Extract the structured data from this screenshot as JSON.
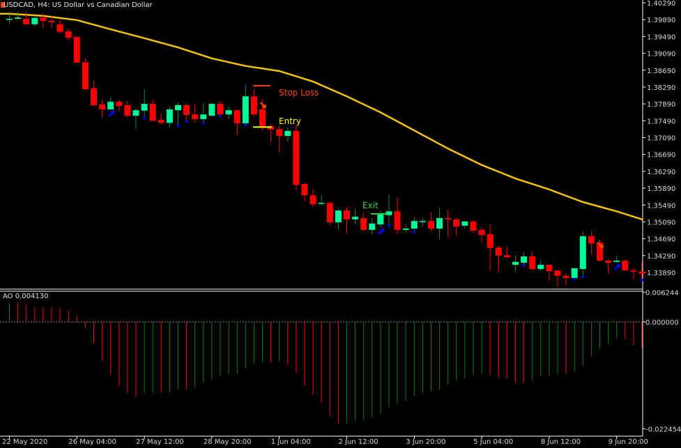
{
  "header": {
    "title": "USDCAD, H4:  US Dollar vs Canadian Dollar"
  },
  "colors": {
    "background": "#000000",
    "bull": "#00fa9a",
    "bear": "#ff0000",
    "ma": "#f5c400",
    "ao_up": "#008000",
    "ao_down": "#ff0000",
    "axis": "#ffffff",
    "stop_loss": "#ff4500",
    "entry": "#ffff00",
    "exit": "#32cd32",
    "buy_arrow": "#0000ff",
    "sell_arrow": "#ff4500"
  },
  "annotations": {
    "stop_loss": {
      "label": "Stop Loss",
      "price": 1.3832
    },
    "entry": {
      "label": "Entry",
      "price": 1.3734
    },
    "exit": {
      "label": "Exit",
      "price": 1.3528
    }
  },
  "chart_data": [
    {
      "type": "candlestick",
      "title": "USDCAD, H4:  US Dollar vs Canadian Dollar",
      "ylim": [
        1.3349,
        1.4036
      ],
      "y_ticks": [
        "1.40290",
        "1.39890",
        "1.39490",
        "1.39090",
        "1.38690",
        "1.38290",
        "1.37890",
        "1.37490",
        "1.37090",
        "1.36690",
        "1.36290",
        "1.35890",
        "1.35490",
        "1.35090",
        "1.34690",
        "1.34290",
        "1.33890"
      ],
      "x_ticks": [
        {
          "index": 0,
          "label": "22 May 2020"
        },
        {
          "index": 8,
          "label": "26 May 04:00"
        },
        {
          "index": 16,
          "label": "27 May 12:00"
        },
        {
          "index": 24,
          "label": "28 May 20:00"
        },
        {
          "index": 32,
          "label": "1 Jun 04:00"
        },
        {
          "index": 40,
          "label": "2 Jun 12:00"
        },
        {
          "index": 48,
          "label": "3 Jun 20:00"
        },
        {
          "index": 56,
          "label": "5 Jun 04:00"
        },
        {
          "index": 64,
          "label": "8 Jun 12:00"
        },
        {
          "index": 72,
          "label": "9 Jun 20:00"
        }
      ],
      "ohlc": [
        [
          1.3991,
          1.4003,
          1.3979,
          1.3991
        ],
        [
          1.3991,
          1.4009,
          1.3989,
          1.3994
        ],
        [
          1.3991,
          1.4008,
          1.3978,
          1.3978
        ],
        [
          1.3978,
          1.3998,
          1.3973,
          1.3993
        ],
        [
          1.3994,
          1.4003,
          1.3969,
          1.3986
        ],
        [
          1.3986,
          1.3998,
          1.3969,
          1.3983
        ],
        [
          1.3978,
          1.3989,
          1.3956,
          1.396
        ],
        [
          1.3961,
          1.3968,
          1.394,
          1.3946
        ],
        [
          1.3948,
          1.395,
          1.3887,
          1.3887
        ],
        [
          1.3888,
          1.3897,
          1.3821,
          1.3824
        ],
        [
          1.3826,
          1.3844,
          1.3783,
          1.3786
        ],
        [
          1.3788,
          1.3799,
          1.3756,
          1.3776
        ],
        [
          1.3776,
          1.3806,
          1.3776,
          1.3794
        ],
        [
          1.3794,
          1.3799,
          1.3771,
          1.3784
        ],
        [
          1.3786,
          1.3796,
          1.3756,
          1.3761
        ],
        [
          1.3761,
          1.3779,
          1.3728,
          1.3774
        ],
        [
          1.3773,
          1.3824,
          1.3759,
          1.3789
        ],
        [
          1.3789,
          1.3799,
          1.3749,
          1.3749
        ],
        [
          1.3751,
          1.3766,
          1.3741,
          1.3744
        ],
        [
          1.3744,
          1.3783,
          1.3734,
          1.3776
        ],
        [
          1.3774,
          1.3791,
          1.374,
          1.3786
        ],
        [
          1.3786,
          1.3791,
          1.3751,
          1.3763
        ],
        [
          1.3764,
          1.3788,
          1.3744,
          1.3753
        ],
        [
          1.3753,
          1.3791,
          1.3746,
          1.3764
        ],
        [
          1.3761,
          1.3791,
          1.3759,
          1.3789
        ],
        [
          1.3789,
          1.3796,
          1.3763,
          1.3764
        ],
        [
          1.3764,
          1.3783,
          1.3753,
          1.3774
        ],
        [
          1.3774,
          1.3776,
          1.3715,
          1.3743
        ],
        [
          1.3743,
          1.3834,
          1.3743,
          1.3807
        ],
        [
          1.3807,
          1.3822,
          1.3759,
          1.3764
        ],
        [
          1.3776,
          1.3799,
          1.3726,
          1.3734
        ],
        [
          1.3736,
          1.374,
          1.37,
          1.3728
        ],
        [
          1.3729,
          1.3736,
          1.3673,
          1.3713
        ],
        [
          1.3713,
          1.3733,
          1.37,
          1.3725
        ],
        [
          1.3725,
          1.3738,
          1.3584,
          1.3597
        ],
        [
          1.3599,
          1.3601,
          1.3557,
          1.3572
        ],
        [
          1.3572,
          1.3586,
          1.3544,
          1.3551
        ],
        [
          1.3553,
          1.3572,
          1.3549,
          1.3554
        ],
        [
          1.3554,
          1.3556,
          1.3501,
          1.3508
        ],
        [
          1.3508,
          1.3541,
          1.3491,
          1.3536
        ],
        [
          1.3536,
          1.3544,
          1.3483,
          1.3515
        ],
        [
          1.3515,
          1.3539,
          1.3503,
          1.3521
        ],
        [
          1.3518,
          1.3528,
          1.3486,
          1.349
        ],
        [
          1.349,
          1.3518,
          1.348,
          1.3505
        ],
        [
          1.3503,
          1.3536,
          1.3496,
          1.3528
        ],
        [
          1.3525,
          1.3574,
          1.3503,
          1.3534
        ],
        [
          1.3534,
          1.3566,
          1.348,
          1.349
        ],
        [
          1.349,
          1.3503,
          1.3483,
          1.3493
        ],
        [
          1.3493,
          1.352,
          1.3488,
          1.3511
        ],
        [
          1.3511,
          1.3518,
          1.3498,
          1.3511
        ],
        [
          1.3511,
          1.3531,
          1.3488,
          1.3493
        ],
        [
          1.3493,
          1.3543,
          1.3468,
          1.3518
        ],
        [
          1.3518,
          1.3538,
          1.3472,
          1.3515
        ],
        [
          1.3515,
          1.3518,
          1.3477,
          1.3498
        ],
        [
          1.35,
          1.3511,
          1.3493,
          1.351
        ],
        [
          1.351,
          1.3513,
          1.3483,
          1.3488
        ],
        [
          1.349,
          1.3496,
          1.346,
          1.3478
        ],
        [
          1.348,
          1.3503,
          1.3392,
          1.3447
        ],
        [
          1.3448,
          1.3453,
          1.3391,
          1.3429
        ],
        [
          1.343,
          1.345,
          1.3425,
          1.3425
        ],
        [
          1.3407,
          1.343,
          1.3391,
          1.3414
        ],
        [
          1.3412,
          1.3437,
          1.3409,
          1.3427
        ],
        [
          1.3427,
          1.3437,
          1.3394,
          1.3397
        ],
        [
          1.3397,
          1.3419,
          1.3392,
          1.3407
        ],
        [
          1.3407,
          1.3407,
          1.3369,
          1.3392
        ],
        [
          1.3394,
          1.3394,
          1.3356,
          1.3381
        ],
        [
          1.3381,
          1.3387,
          1.3358,
          1.3376
        ],
        [
          1.3376,
          1.34,
          1.3376,
          1.3399
        ],
        [
          1.3397,
          1.3486,
          1.3382,
          1.3475
        ],
        [
          1.3475,
          1.3488,
          1.3432,
          1.3458
        ],
        [
          1.346,
          1.3467,
          1.3414,
          1.3417
        ],
        [
          1.3417,
          1.342,
          1.3386,
          1.3412
        ],
        [
          1.3414,
          1.3429,
          1.3412,
          1.3417
        ],
        [
          1.3417,
          1.3419,
          1.3392,
          1.3394
        ],
        [
          1.3394,
          1.34,
          1.3372,
          1.3391
        ],
        [
          1.3391,
          1.3414,
          1.3374,
          1.3386
        ]
      ],
      "moving_average": [
        [
          0,
          1.4003
        ],
        [
          4,
          1.3998
        ],
        [
          8,
          1.3988
        ],
        [
          12,
          1.3966
        ],
        [
          16,
          1.3945
        ],
        [
          20,
          1.3923
        ],
        [
          24,
          1.3897
        ],
        [
          28,
          1.3879
        ],
        [
          32,
          1.3867
        ],
        [
          36,
          1.3842
        ],
        [
          40,
          1.3807
        ],
        [
          44,
          1.3769
        ],
        [
          48,
          1.3726
        ],
        [
          52,
          1.3683
        ],
        [
          56,
          1.3644
        ],
        [
          60,
          1.3612
        ],
        [
          64,
          1.3586
        ],
        [
          68,
          1.3556
        ],
        [
          72,
          1.3534
        ],
        [
          75,
          1.3515
        ]
      ],
      "buy_arrows": [
        12,
        44,
        72
      ],
      "sell_arrows": [
        30,
        70
      ],
      "dots_below": [
        16,
        20,
        21,
        23,
        25,
        28,
        45,
        48,
        61,
        67,
        68,
        75
      ]
    },
    {
      "type": "bar",
      "title": "AO 0.004130",
      "ylim": [
        -0.022454,
        0.006244
      ],
      "y_ticks": [
        "0.006244",
        "0.000000",
        "-0.022454"
      ],
      "values": [
        0.00402,
        0.00402,
        0.00363,
        0.00299,
        0.00299,
        0.00299,
        0.00284,
        0.00245,
        0.00127,
        -0.00127,
        -0.00446,
        -0.00804,
        -0.01107,
        -0.01348,
        -0.01495,
        -0.01568,
        -0.0149,
        -0.01485,
        -0.01485,
        -0.0148,
        -0.01406,
        -0.01406,
        -0.01377,
        -0.01284,
        -0.01215,
        -0.01132,
        -0.01107,
        -0.01083,
        -0.00985,
        -0.00887,
        -0.00848,
        -0.00858,
        -0.00828,
        -0.00902,
        -0.01083,
        -0.01338,
        -0.01534,
        -0.01695,
        -0.0196,
        -0.02122,
        -0.02121,
        -0.02073,
        -0.02063,
        -0.02004,
        -0.01931,
        -0.01798,
        -0.01705,
        -0.01656,
        -0.01548,
        -0.01495,
        -0.0146,
        -0.01421,
        -0.01318,
        -0.0124,
        -0.01181,
        -0.01122,
        -0.01098,
        -0.01117,
        -0.01156,
        -0.01181,
        -0.01264,
        -0.01274,
        -0.0123,
        -0.01142,
        -0.01132,
        -0.01098,
        -0.01103,
        -0.01049,
        -0.00921,
        -0.00725,
        -0.00564,
        -0.00456,
        -0.00343,
        -0.00372,
        -0.00495,
        -0.00539
      ]
    }
  ]
}
